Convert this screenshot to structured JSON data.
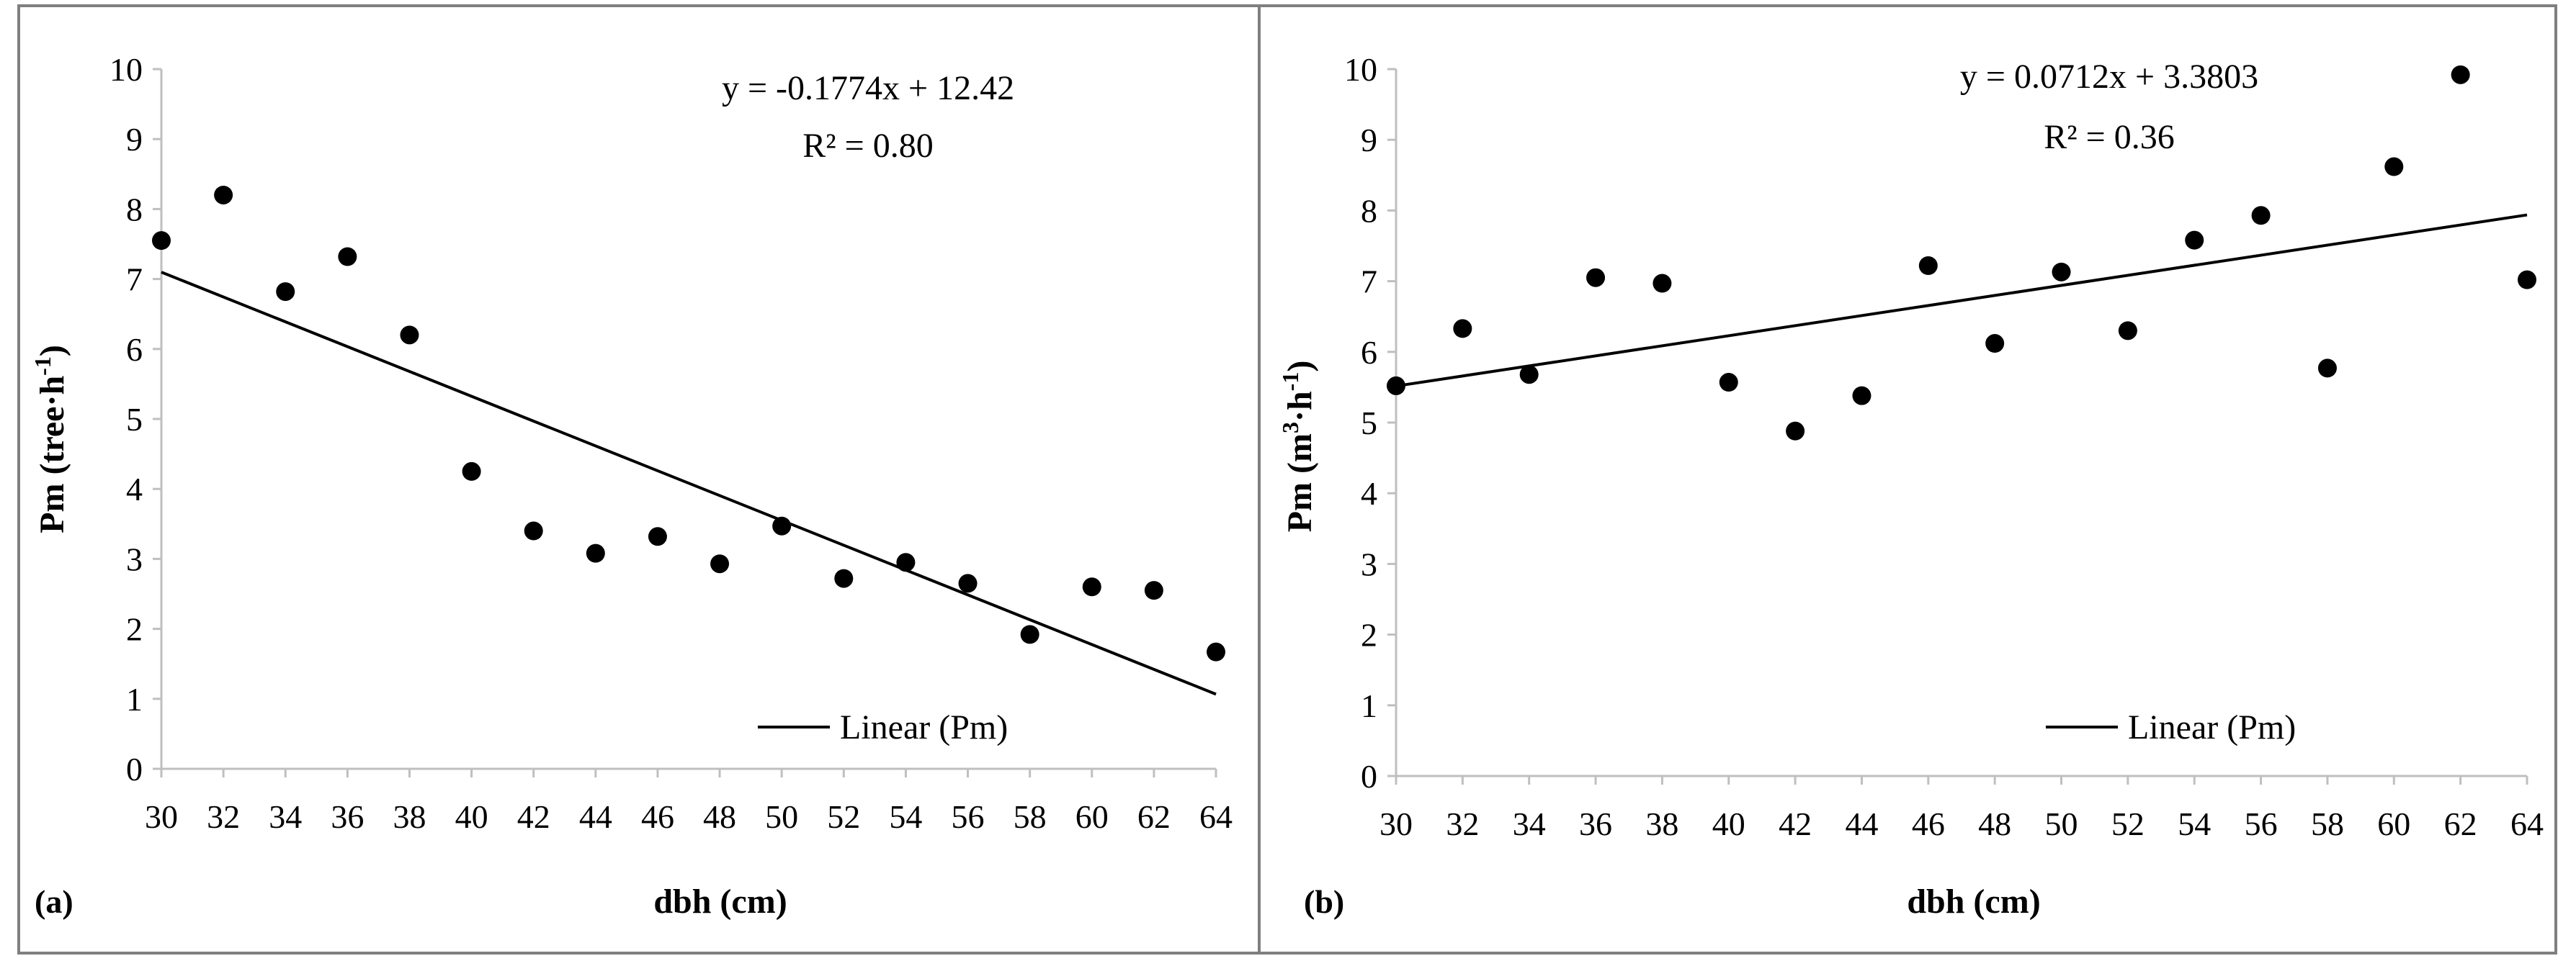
{
  "figure": {
    "panels": [
      "(a)",
      "(b)"
    ]
  },
  "chart_data": [
    {
      "type": "scatter",
      "panel_label": "(a)",
      "xlabel": "dbh (cm)",
      "ylabel_main": "Pm (tree·h",
      "ylabel_sup": "-1",
      "ylabel_tail": ")",
      "x_ticks": [
        30,
        32,
        34,
        36,
        38,
        40,
        42,
        44,
        46,
        48,
        50,
        52,
        54,
        56,
        58,
        60,
        62,
        64
      ],
      "y_ticks": [
        0,
        1,
        2,
        3,
        4,
        5,
        6,
        7,
        8,
        9,
        10
      ],
      "xlim": [
        30,
        64
      ],
      "ylim": [
        0,
        10
      ],
      "series": [
        {
          "name": "Pm",
          "x": [
            30,
            32,
            34,
            36,
            38,
            40,
            42,
            44,
            46,
            48,
            50,
            52,
            54,
            56,
            58,
            60,
            62,
            64
          ],
          "y": [
            7.55,
            8.2,
            6.82,
            7.32,
            6.2,
            4.25,
            3.4,
            3.08,
            3.32,
            2.93,
            3.47,
            2.72,
            2.95,
            2.65,
            1.92,
            2.6,
            2.55,
            1.67
          ]
        }
      ],
      "trendline": {
        "slope": -0.1774,
        "intercept": 12.42,
        "x_start": 30,
        "x_end": 64,
        "legend_label": "Linear (Pm)"
      },
      "equation_text": "y = -0.1774x + 12.42",
      "r2_text": "R² = 0.80"
    },
    {
      "type": "scatter",
      "panel_label": "(b)",
      "xlabel": "dbh (cm)",
      "ylabel_main": "Pm (m",
      "ylabel_sup": "3",
      "ylabel_mid": "·h",
      "ylabel_sup2": "-1",
      "ylabel_tail": ")",
      "x_ticks": [
        30,
        32,
        34,
        36,
        38,
        40,
        42,
        44,
        46,
        48,
        50,
        52,
        54,
        56,
        58,
        60,
        62,
        64
      ],
      "y_ticks": [
        0,
        1,
        2,
        3,
        4,
        5,
        6,
        7,
        8,
        9,
        10
      ],
      "xlim": [
        30,
        64
      ],
      "ylim": [
        0,
        10
      ],
      "series": [
        {
          "name": "Pm",
          "x": [
            30,
            32,
            34,
            36,
            38,
            40,
            42,
            44,
            46,
            48,
            50,
            52,
            54,
            56,
            58,
            60,
            62,
            64
          ],
          "y": [
            5.52,
            6.33,
            5.68,
            7.05,
            6.97,
            5.57,
            4.88,
            5.38,
            7.22,
            6.12,
            7.13,
            6.3,
            7.58,
            7.93,
            5.77,
            8.62,
            9.92,
            7.02
          ]
        }
      ],
      "trendline": {
        "slope": 0.0712,
        "intercept": 3.3803,
        "x_start": 30,
        "x_end": 64,
        "legend_label": "Linear (Pm)"
      },
      "equation_text": "y = 0.0712x + 3.3803",
      "r2_text": "R² = 0.36"
    }
  ]
}
